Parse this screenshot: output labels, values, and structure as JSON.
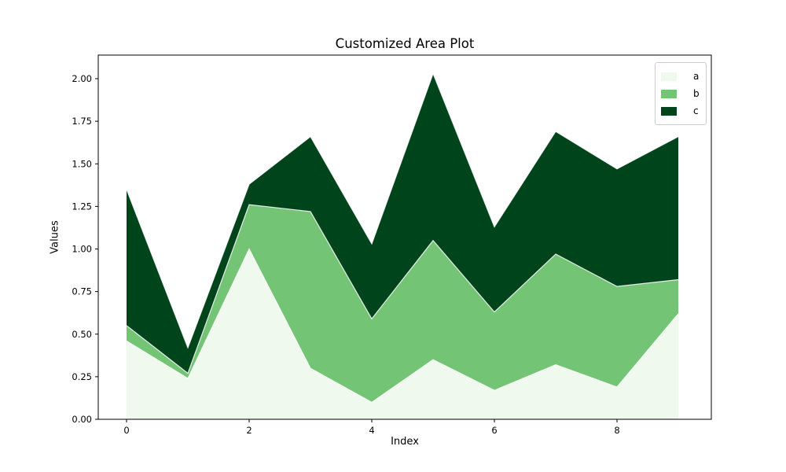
{
  "title": "Customized Area Plot",
  "chart_data": {
    "type": "area",
    "stacked": true,
    "title": "Customized Area Plot",
    "xlabel": "Index",
    "ylabel": "Values",
    "x": [
      0,
      1,
      2,
      3,
      4,
      5,
      6,
      7,
      8,
      9
    ],
    "series": [
      {
        "name": "a",
        "color": "#f0f9ed",
        "values": [
          0.46,
          0.24,
          1.0,
          0.3,
          0.1,
          0.35,
          0.17,
          0.32,
          0.19,
          0.62
        ]
      },
      {
        "name": "b",
        "color": "#74c476",
        "values": [
          0.09,
          0.03,
          0.26,
          0.92,
          0.49,
          0.7,
          0.46,
          0.65,
          0.59,
          0.2
        ]
      },
      {
        "name": "c",
        "color": "#00441b",
        "values": [
          0.8,
          0.15,
          0.12,
          0.44,
          0.44,
          0.98,
          0.5,
          0.72,
          0.69,
          0.84
        ]
      }
    ],
    "stack_totals": [
      1.35,
      0.42,
      1.38,
      1.66,
      1.03,
      2.03,
      1.13,
      1.69,
      1.47,
      1.66
    ],
    "xticks": [
      0,
      2,
      4,
      6,
      8
    ],
    "yticks": [
      "0.00",
      "0.25",
      "0.50",
      "0.75",
      "1.00",
      "1.25",
      "1.50",
      "1.75",
      "2.00"
    ],
    "xlim": [
      -0.46,
      9.54
    ],
    "ylim": [
      0,
      2.14
    ],
    "grid": false,
    "edge_color": "rgba(255,255,255,0.85)",
    "legend": {
      "position": "upper right",
      "labels": [
        "a",
        "b",
        "c"
      ]
    }
  }
}
